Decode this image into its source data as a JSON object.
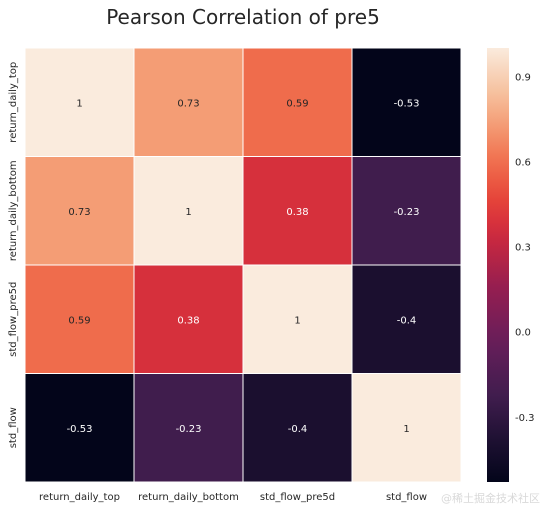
{
  "chart_data": {
    "type": "heatmap",
    "title": "Pearson Correlation of pre5",
    "rows": [
      "return_daily_top",
      "return_daily_bottom",
      "std_flow_pre5d",
      "std_flow"
    ],
    "cols": [
      "return_daily_top",
      "return_daily_bottom",
      "std_flow_pre5d",
      "std_flow"
    ],
    "values": [
      [
        1,
        0.73,
        0.59,
        -0.53
      ],
      [
        0.73,
        1,
        0.38,
        -0.23
      ],
      [
        0.59,
        0.38,
        1,
        -0.4
      ],
      [
        -0.53,
        -0.23,
        -0.4,
        1
      ]
    ],
    "value_labels": [
      [
        "1",
        "0.73",
        "0.59",
        "-0.53"
      ],
      [
        "0.73",
        "1",
        "0.38",
        "-0.23"
      ],
      [
        "0.59",
        "0.38",
        "1",
        "-0.4"
      ],
      [
        "-0.53",
        "-0.23",
        "-0.4",
        "1"
      ]
    ],
    "colorbar": {
      "vmin": -0.53,
      "vmax": 1,
      "ticks": [
        0.9,
        0.6,
        0.3,
        0.0,
        -0.3
      ],
      "tick_labels": [
        "0.9",
        "0.6",
        "0.3",
        "0.0",
        "-0.3"
      ],
      "colormap": "rocket"
    },
    "xlabel": "",
    "ylabel": ""
  },
  "watermark": "@稀土掘金技术社区"
}
